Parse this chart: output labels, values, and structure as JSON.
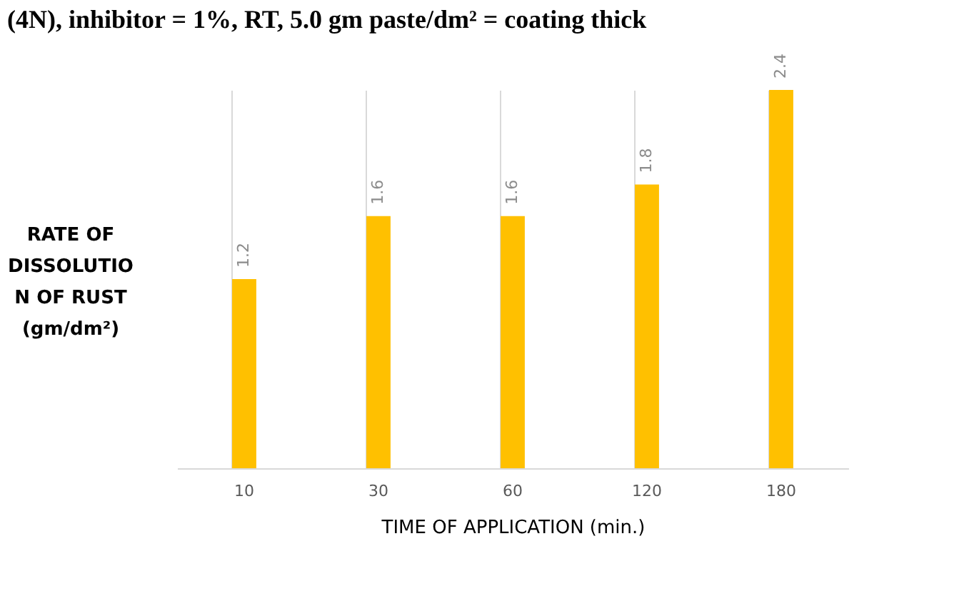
{
  "chart_data": {
    "type": "bar",
    "title": "(4N), inhibitor = 1%, RT, 5.0 gm paste/dm² = coating thick",
    "xlabel": "TIME OF APPLICATION (min.)",
    "ylabel": "RATE OF\nDISSOLUTIO\nN OF RUST\n(gm/dm²)",
    "categories": [
      "10",
      "30",
      "60",
      "120",
      "180"
    ],
    "series": [
      {
        "color": "#ffc000",
        "values": [
          1.2,
          1.6,
          1.6,
          1.8,
          2.4
        ]
      }
    ],
    "data_labels": true,
    "grid": "x"
  }
}
